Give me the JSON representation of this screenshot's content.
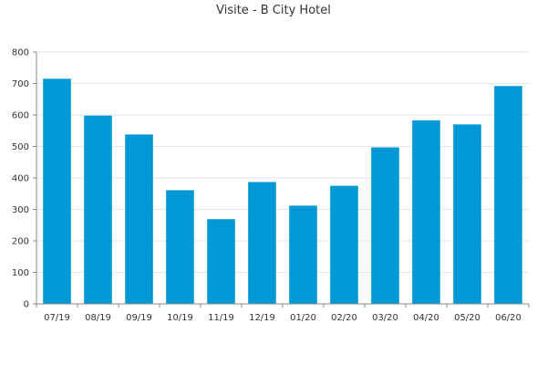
{
  "chart_data": {
    "type": "bar",
    "title": "Visite - B City Hotel",
    "xlabel": "",
    "ylabel": "",
    "categories": [
      "07/19",
      "08/19",
      "09/19",
      "10/19",
      "11/19",
      "12/19",
      "01/20",
      "02/20",
      "03/20",
      "04/20",
      "05/20",
      "06/20"
    ],
    "values": [
      715,
      598,
      538,
      361,
      269,
      387,
      312,
      375,
      497,
      583,
      570,
      692
    ],
    "ylim": [
      0,
      800
    ],
    "yticks": [
      0,
      100,
      200,
      300,
      400,
      500,
      600,
      700,
      800
    ],
    "grid": true,
    "legend": "none",
    "bar_color": "#0099d6"
  }
}
